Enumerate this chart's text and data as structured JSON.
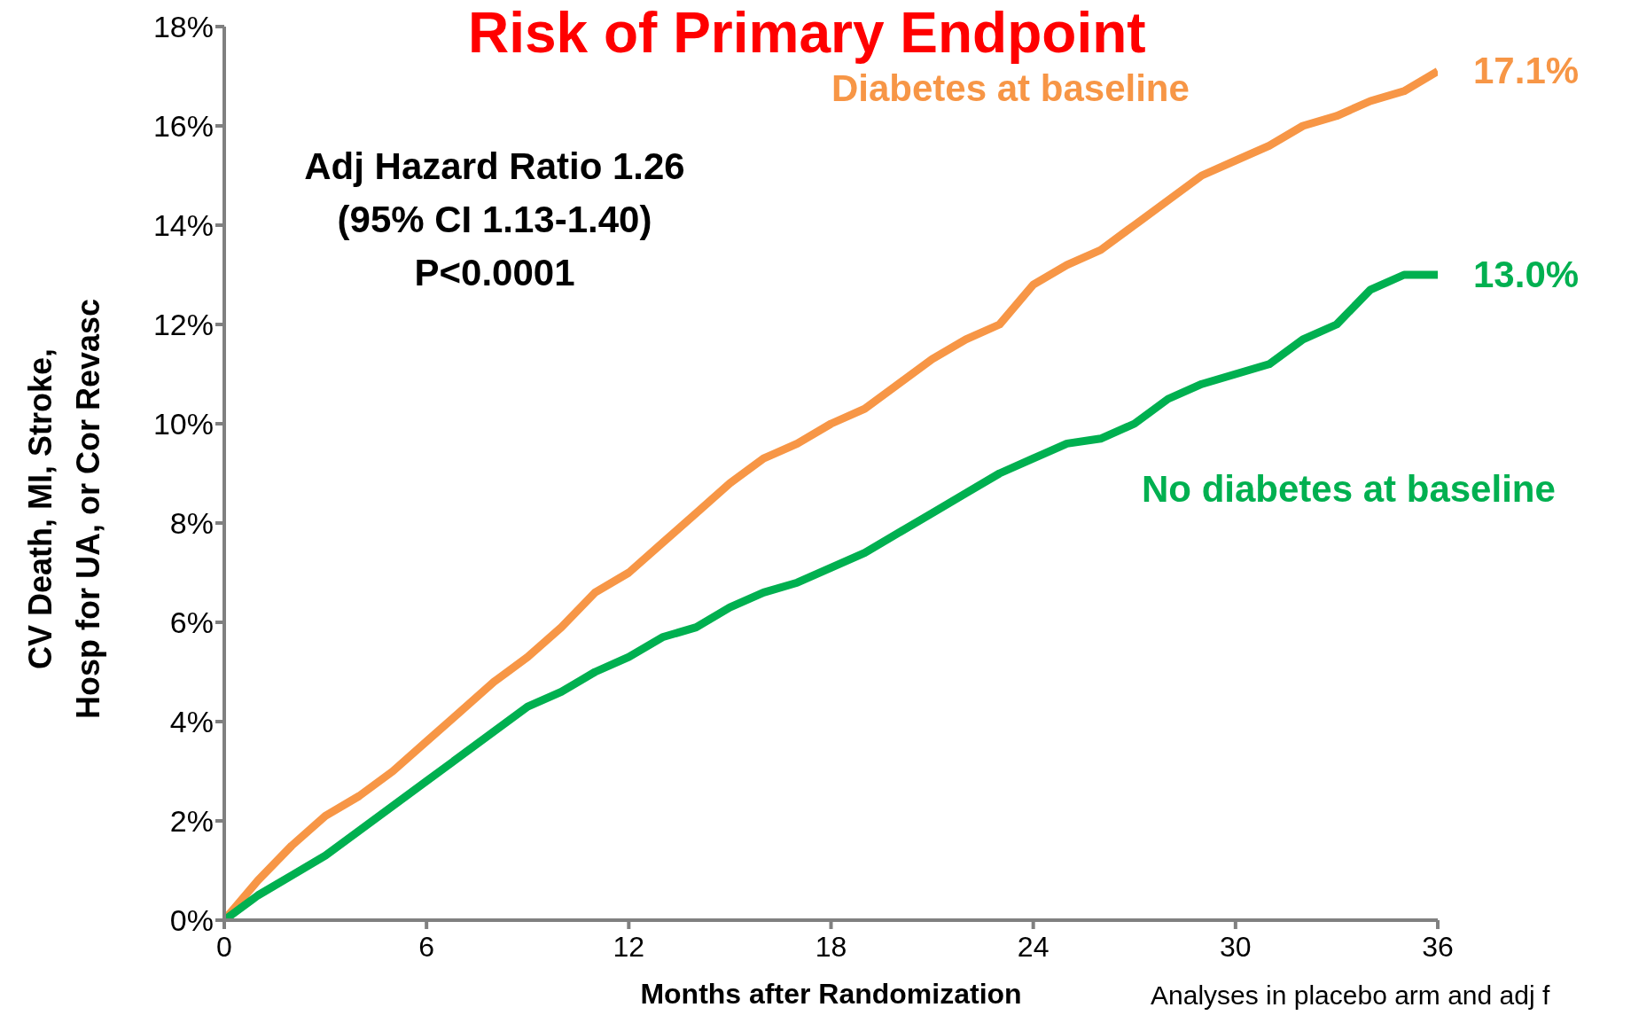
{
  "chart_data": {
    "type": "line",
    "title": "Risk of Primary Endpoint",
    "xlabel": "Months after Randomization",
    "ylabel": "CV Death, MI, Stroke,\nHosp for UA, or Cor Revasc",
    "x": [
      0,
      1,
      2,
      3,
      4,
      5,
      6,
      7,
      8,
      9,
      10,
      11,
      12,
      13,
      14,
      15,
      16,
      17,
      18,
      19,
      20,
      21,
      22,
      23,
      24,
      25,
      26,
      27,
      28,
      29,
      30,
      31,
      32,
      33,
      34,
      35,
      36
    ],
    "series": [
      {
        "name": "Diabetes at baseline",
        "color": "#f79646",
        "values": [
          0,
          0.8,
          1.5,
          2.1,
          2.5,
          3.0,
          3.6,
          4.2,
          4.8,
          5.3,
          5.9,
          6.6,
          7.0,
          7.6,
          8.2,
          8.8,
          9.3,
          9.6,
          10.0,
          10.3,
          10.8,
          11.3,
          11.7,
          12.0,
          12.8,
          13.2,
          13.5,
          14.0,
          14.5,
          15.0,
          15.3,
          15.6,
          16.0,
          16.2,
          16.5,
          16.7,
          17.1
        ]
      },
      {
        "name": "No diabetes at baseline",
        "color": "#00b050",
        "values": [
          0,
          0.5,
          0.9,
          1.3,
          1.8,
          2.3,
          2.8,
          3.3,
          3.8,
          4.3,
          4.6,
          5.0,
          5.3,
          5.7,
          5.9,
          6.3,
          6.6,
          6.8,
          7.1,
          7.4,
          7.8,
          8.2,
          8.6,
          9.0,
          9.3,
          9.6,
          9.7,
          10.0,
          10.5,
          10.8,
          11.0,
          11.2,
          11.7,
          12.0,
          12.7,
          13.0,
          13.0
        ]
      }
    ],
    "xlim": [
      0,
      36
    ],
    "xticks": [
      0,
      6,
      12,
      18,
      24,
      30,
      36
    ],
    "ylim": [
      0,
      18
    ],
    "yticks": [
      {
        "value": 0,
        "label": "0%"
      },
      {
        "value": 2,
        "label": "2%"
      },
      {
        "value": 4,
        "label": "4%"
      },
      {
        "value": 6,
        "label": "6%"
      },
      {
        "value": 8,
        "label": "8%"
      },
      {
        "value": 10,
        "label": "10%"
      },
      {
        "value": 12,
        "label": "12%"
      },
      {
        "value": 14,
        "label": "14%"
      },
      {
        "value": 16,
        "label": "16%"
      },
      {
        "value": 18,
        "label": "18%"
      }
    ],
    "grid": false,
    "legend": false,
    "marker": "none",
    "line_style": "solid",
    "annotations": [
      "Adj Hazard Ratio 1.26\n(95% CI 1.13-1.40)\nP<0.0001",
      {
        "text": "17.1%",
        "x": 36,
        "y": 17.1
      },
      {
        "text": "13.0%",
        "x": 36,
        "y": 13.0
      },
      "Analyses in placebo arm and adj f"
    ]
  }
}
